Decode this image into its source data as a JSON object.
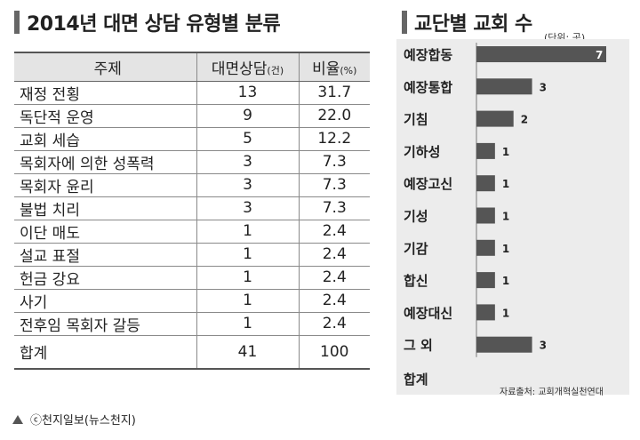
{
  "left": {
    "title": "2014년 대면 상담 유형별 분류",
    "headers": {
      "subject": "주제",
      "count": "대면상담",
      "count_unit": "(건)",
      "ratio": "비율",
      "ratio_unit": "(%)"
    },
    "rows": [
      {
        "subject": "재정 전횡",
        "count": "13",
        "ratio": "31.7"
      },
      {
        "subject": "독단적 운영",
        "count": "9",
        "ratio": "22.0"
      },
      {
        "subject": "교회 세습",
        "count": "5",
        "ratio": "12.2"
      },
      {
        "subject": "목회자에 의한 성폭력",
        "count": "3",
        "ratio": "7.3"
      },
      {
        "subject": "목회자 윤리",
        "count": "3",
        "ratio": "7.3"
      },
      {
        "subject": "불법 치리",
        "count": "3",
        "ratio": "7.3"
      },
      {
        "subject": "이단 매도",
        "count": "1",
        "ratio": "2.4"
      },
      {
        "subject": "설교 표절",
        "count": "1",
        "ratio": "2.4"
      },
      {
        "subject": "헌금 강요",
        "count": "1",
        "ratio": "2.4"
      },
      {
        "subject": "사기",
        "count": "1",
        "ratio": "2.4"
      },
      {
        "subject": "전후임 목회자 갈등",
        "count": "1",
        "ratio": "2.4"
      }
    ],
    "total": {
      "label": "합계",
      "count": "41",
      "ratio": "100"
    }
  },
  "caption": "ⓒ천지일보(뉴스천지)",
  "chart_data": {
    "type": "bar",
    "orientation": "horizontal",
    "title": "교단별 교회 수",
    "unit_note": "(단위: 곳)",
    "categories": [
      "예장합동",
      "예장통합",
      "기침",
      "기하성",
      "예장고신",
      "기성",
      "기감",
      "합신",
      "예장대신",
      "그 외"
    ],
    "values": [
      7,
      3,
      2,
      1,
      1,
      1,
      1,
      1,
      1,
      3
    ],
    "total_label": "합계",
    "source": "자료출처: 교회개혁실천연대",
    "bar_color": "#555555",
    "label_on_bar_color": "#ffffff"
  }
}
